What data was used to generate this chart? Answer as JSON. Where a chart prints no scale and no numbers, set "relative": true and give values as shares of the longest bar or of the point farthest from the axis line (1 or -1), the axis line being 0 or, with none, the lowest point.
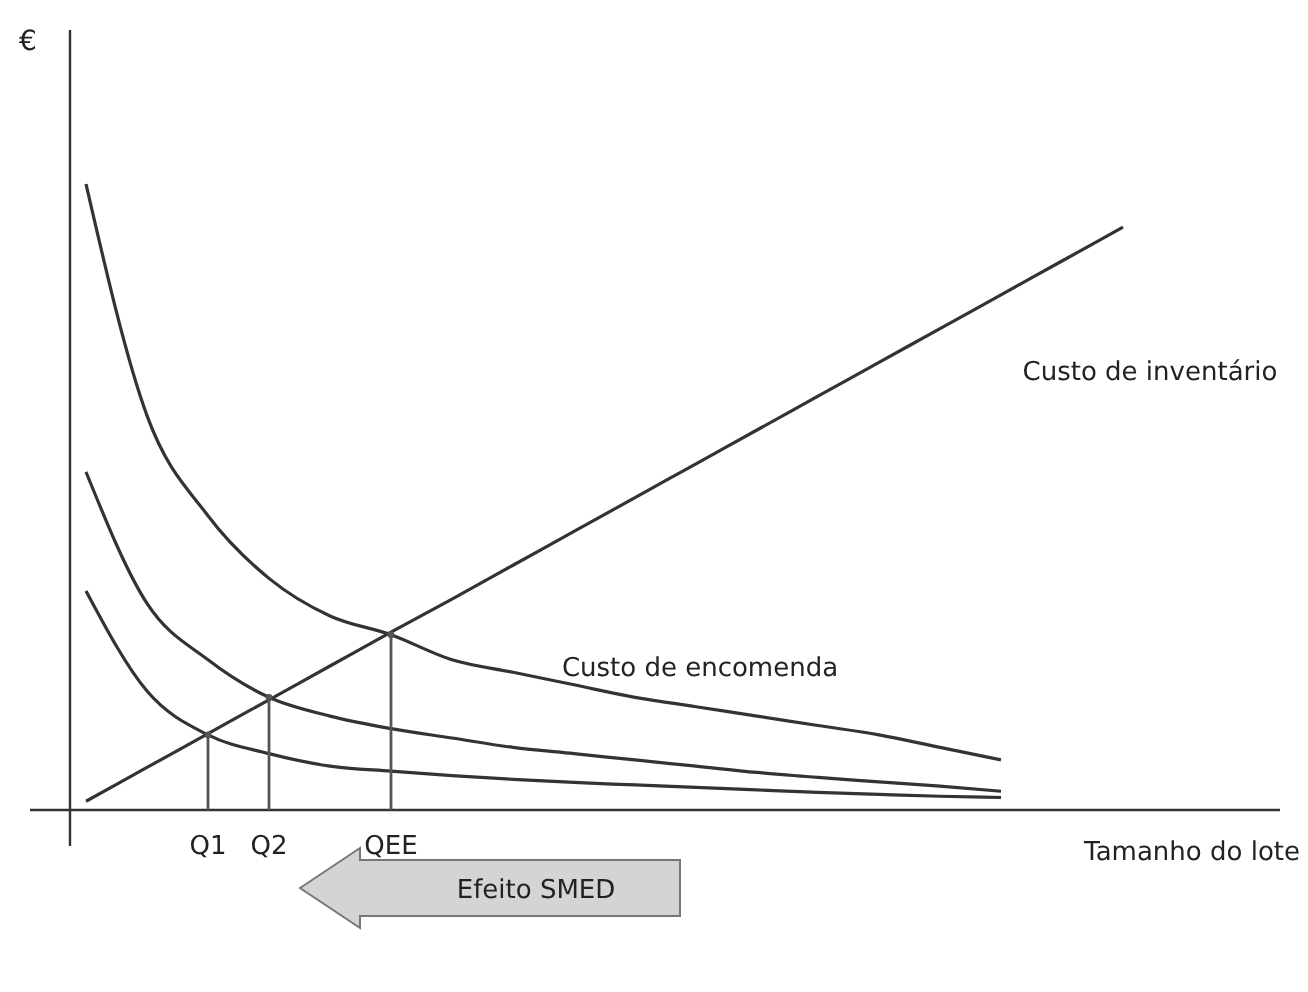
{
  "chart_data": {
    "type": "line",
    "relative": true,
    "xlabel": "Tamanho do lote",
    "ylabel": "€",
    "categories": [
      null,
      null,
      "Q1",
      "Q2",
      null,
      "QEE",
      null,
      null,
      null,
      null,
      null,
      null,
      null,
      null,
      null,
      null,
      null,
      null,
      null,
      null
    ],
    "marker": "none",
    "line_style": "solid",
    "series": [
      {
        "name": "Custo de inventário",
        "color": "#333333",
        "values": [
          0.014,
          0.068,
          0.122,
          0.176,
          0.23,
          0.284,
          0.337,
          0.391,
          0.445,
          0.499,
          0.553,
          0.607,
          0.661,
          0.715,
          0.769,
          0.823,
          0.877,
          0.931,
          null,
          null
        ]
      },
      {
        "name": "Custo de encomenda",
        "color": "#333333",
        "values": [
          1,
          0.63,
          0.47,
          0.37,
          0.31,
          0.28,
          0.24,
          0.22,
          0.2,
          0.18,
          0.165,
          0.15,
          0.135,
          0.12,
          0.1,
          0.08,
          null,
          null,
          null,
          null
        ]
      },
      {
        "color": "#333333",
        "values": [
          0.54,
          0.33,
          0.24,
          0.18,
          0.15,
          0.13,
          0.115,
          0.1,
          0.09,
          0.08,
          0.07,
          0.06,
          0.052,
          0.045,
          0.038,
          0.03,
          null,
          null,
          null,
          null
        ]
      },
      {
        "color": "#333333",
        "values": [
          0.35,
          0.19,
          0.12,
          0.09,
          0.07,
          0.062,
          0.055,
          0.049,
          0.044,
          0.04,
          0.036,
          0.032,
          0.028,
          0.025,
          0.022,
          0.02,
          null,
          null,
          null,
          null
        ]
      },
      {
        "type": "lollipop",
        "marker": "circle",
        "color": "#555555",
        "values": [
          null,
          null,
          0.12,
          0.18,
          null,
          0.28,
          null,
          null,
          null,
          null,
          null,
          null,
          null,
          null,
          null,
          null,
          null,
          null,
          null,
          null
        ]
      }
    ],
    "annotations": [
      "Efeito SMED"
    ]
  }
}
